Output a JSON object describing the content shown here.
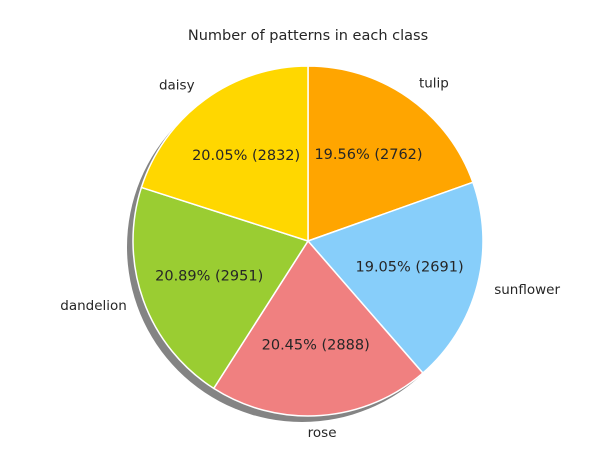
{
  "chart_data": {
    "type": "pie",
    "title": "Number of patterns in each class",
    "slices": [
      {
        "label": "tulip",
        "value": 2762,
        "percent": "19.56%",
        "color": "#FFA500"
      },
      {
        "label": "sunflower",
        "value": 2691,
        "percent": "19.05%",
        "color": "#87CEFA"
      },
      {
        "label": "rose",
        "value": 2888,
        "percent": "20.45%",
        "color": "#F08080"
      },
      {
        "label": "dandelion",
        "value": 2951,
        "percent": "20.89%",
        "color": "#9ACD32"
      },
      {
        "label": "daisy",
        "value": 2832,
        "percent": "20.05%",
        "color": "#FFD700"
      }
    ],
    "start_angle": "top",
    "direction": "clockwise",
    "shadow": true
  }
}
